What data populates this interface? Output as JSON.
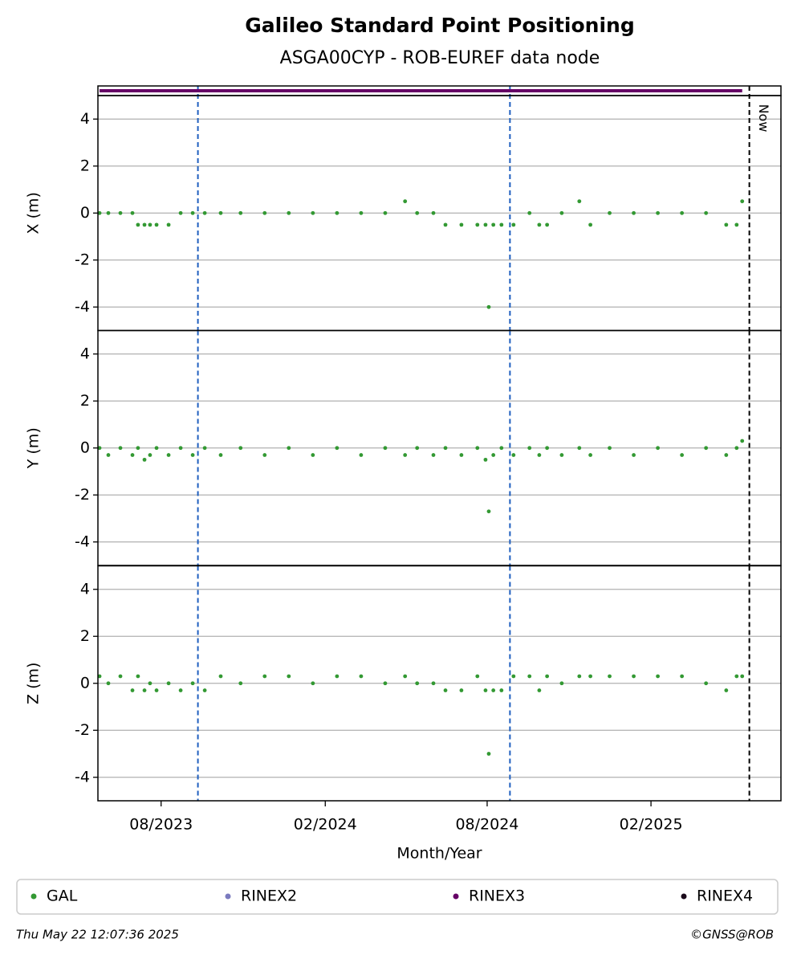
{
  "chart_data": [
    {
      "type": "scatter",
      "title": "Galileo Standard Point Positioning",
      "subtitle": "ASGA00CYP - ROB-EUREF data node",
      "ylabel": "X (m)",
      "xlim": [
        2023.387,
        2025.484
      ],
      "ylim": [
        -5,
        5
      ],
      "yticks": [
        -4,
        -2,
        0,
        2,
        4
      ],
      "grid": true,
      "availability": {
        "name": "RINEX3",
        "color": "#660066",
        "x": [
          2023.392,
          2025.365
        ]
      },
      "vlines": [
        {
          "x": 2023.694,
          "color": "#1f5fbf"
        },
        {
          "x": 2024.652,
          "color": "#1f5fbf"
        },
        {
          "x": 2025.387,
          "color": "#000000"
        }
      ],
      "annotation": {
        "text": "Now",
        "x": 2025.387
      },
      "x": [
        2023.392,
        2023.419,
        2023.456,
        2023.493,
        2023.51,
        2023.53,
        2023.547,
        2023.567,
        2023.604,
        2023.641,
        2023.678,
        2023.715,
        2023.764,
        2023.825,
        2023.899,
        2023.973,
        2024.047,
        2024.121,
        2024.195,
        2024.269,
        2024.33,
        2024.367,
        2024.417,
        2024.454,
        2024.503,
        2024.552,
        2024.577,
        2024.587,
        2024.601,
        2024.626,
        2024.663,
        2024.712,
        2024.742,
        2024.766,
        2024.811,
        2024.865,
        2024.899,
        2024.958,
        2025.032,
        2025.106,
        2025.18,
        2025.254,
        2025.316,
        2025.348,
        2025.365
      ],
      "series": [
        {
          "name": "GAL",
          "color": "#339933",
          "values": [
            0,
            0,
            0,
            0,
            -0.5,
            -0.5,
            -0.5,
            -0.5,
            -0.5,
            0,
            0,
            0,
            0,
            0,
            0,
            0,
            0,
            0,
            0,
            0,
            0.5,
            0,
            0,
            -0.5,
            -0.5,
            -0.5,
            -0.5,
            -4,
            -0.5,
            -0.5,
            -0.5,
            0,
            -0.5,
            -0.5,
            0,
            0.5,
            -0.5,
            0,
            0,
            0,
            0,
            0,
            -0.5,
            -0.5,
            0.5
          ]
        }
      ]
    },
    {
      "type": "scatter",
      "ylabel": "Y (m)",
      "xlim": [
        2023.387,
        2025.484
      ],
      "ylim": [
        -5,
        5
      ],
      "yticks": [
        -4,
        -2,
        0,
        2,
        4
      ],
      "grid": true,
      "vlines": [
        {
          "x": 2023.694,
          "color": "#1f5fbf"
        },
        {
          "x": 2024.652,
          "color": "#1f5fbf"
        },
        {
          "x": 2025.387,
          "color": "#000000"
        }
      ],
      "x": [
        2023.392,
        2023.419,
        2023.456,
        2023.493,
        2023.51,
        2023.53,
        2023.547,
        2023.567,
        2023.604,
        2023.641,
        2023.678,
        2023.715,
        2023.764,
        2023.825,
        2023.899,
        2023.973,
        2024.047,
        2024.121,
        2024.195,
        2024.269,
        2024.33,
        2024.367,
        2024.417,
        2024.454,
        2024.503,
        2024.552,
        2024.577,
        2024.587,
        2024.601,
        2024.626,
        2024.663,
        2024.712,
        2024.742,
        2024.766,
        2024.811,
        2024.865,
        2024.899,
        2024.958,
        2025.032,
        2025.106,
        2025.18,
        2025.254,
        2025.316,
        2025.348,
        2025.365
      ],
      "series": [
        {
          "name": "GAL",
          "color": "#339933",
          "values": [
            0,
            -0.3,
            0,
            -0.3,
            0,
            -0.5,
            -0.3,
            0,
            -0.3,
            0,
            -0.3,
            0,
            -0.3,
            0,
            -0.3,
            0,
            -0.3,
            0,
            -0.3,
            0,
            -0.3,
            0,
            -0.3,
            0,
            -0.3,
            0,
            -0.5,
            -2.7,
            -0.3,
            0,
            -0.3,
            0,
            -0.3,
            0,
            -0.3,
            0,
            -0.3,
            0,
            -0.3,
            0,
            -0.3,
            0,
            -0.3,
            0,
            0.3
          ]
        }
      ]
    },
    {
      "type": "scatter",
      "ylabel": "Z (m)",
      "xlabel": "Month/Year",
      "xlim": [
        2023.387,
        2025.484
      ],
      "ylim": [
        -5,
        5
      ],
      "yticks": [
        -4,
        -2,
        0,
        2,
        4
      ],
      "grid": true,
      "xticks": [
        {
          "value": 2023.581,
          "label": "08/2023"
        },
        {
          "value": 2024.085,
          "label": "02/2024"
        },
        {
          "value": 2024.582,
          "label": "08/2024"
        },
        {
          "value": 2025.085,
          "label": "02/2025"
        }
      ],
      "vlines": [
        {
          "x": 2023.694,
          "color": "#1f5fbf"
        },
        {
          "x": 2024.652,
          "color": "#1f5fbf"
        },
        {
          "x": 2025.387,
          "color": "#000000"
        }
      ],
      "x": [
        2023.392,
        2023.419,
        2023.456,
        2023.493,
        2023.51,
        2023.53,
        2023.547,
        2023.567,
        2023.604,
        2023.641,
        2023.678,
        2023.715,
        2023.764,
        2023.825,
        2023.899,
        2023.973,
        2024.047,
        2024.121,
        2024.195,
        2024.269,
        2024.33,
        2024.367,
        2024.417,
        2024.454,
        2024.503,
        2024.552,
        2024.577,
        2024.587,
        2024.601,
        2024.626,
        2024.663,
        2024.712,
        2024.742,
        2024.766,
        2024.811,
        2024.865,
        2024.899,
        2024.958,
        2025.032,
        2025.106,
        2025.18,
        2025.254,
        2025.316,
        2025.348,
        2025.365
      ],
      "series": [
        {
          "name": "GAL",
          "color": "#339933",
          "values": [
            0.3,
            0,
            0.3,
            -0.3,
            0.3,
            -0.3,
            0,
            -0.3,
            0,
            -0.3,
            0,
            -0.3,
            0.3,
            0,
            0.3,
            0.3,
            0,
            0.3,
            0.3,
            0,
            0.3,
            0,
            0,
            -0.3,
            -0.3,
            0.3,
            -0.3,
            -3,
            -0.3,
            -0.3,
            0.3,
            0.3,
            -0.3,
            0.3,
            0,
            0.3,
            0.3,
            0.3,
            0.3,
            0.3,
            0.3,
            0,
            -0.3,
            0.3,
            0.3
          ]
        }
      ]
    }
  ],
  "legend": {
    "entries": [
      {
        "name": "GAL",
        "color": "#339933"
      },
      {
        "name": "RINEX2",
        "color": "#7b7bbf"
      },
      {
        "name": "RINEX3",
        "color": "#660066"
      },
      {
        "name": "RINEX4",
        "color": "#1a0a1a"
      }
    ]
  },
  "footer": {
    "left": "Thu May 22 12:07:36 2025",
    "right": "©GNSS@ROB"
  }
}
